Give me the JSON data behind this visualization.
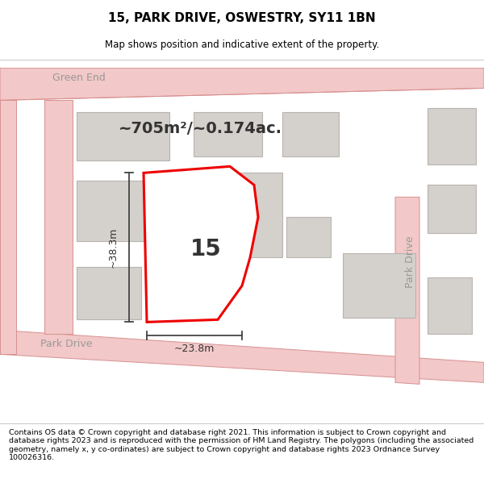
{
  "title": "15, PARK DRIVE, OSWESTRY, SY11 1BN",
  "subtitle": "Map shows position and indicative extent of the property.",
  "footer": "Contains OS data © Crown copyright and database right 2021. This information is subject to Crown copyright and database rights 2023 and is reproduced with the permission of HM Land Registry. The polygons (including the associated geometry, namely x, y co-ordinates) are subject to Crown copyright and database rights 2023 Ordnance Survey 100026316.",
  "area_label": "~705m²/~0.174ac.",
  "number_label": "15",
  "dim_h": "~38.3m",
  "dim_w": "~23.8m",
  "street_green_end": "Green End",
  "street_park_drive_h": "Park Drive",
  "street_park_drive_v": "Park Drive",
  "bg_color": "#f5eeea",
  "road_fill": "#f2c8c8",
  "road_edge": "#d89090",
  "building_fill": "#d4d0cc",
  "building_edge": "#b8b4b0",
  "plot_fill": "#ffffff",
  "plot_edge": "#ee0000",
  "dim_line_color": "#444444",
  "text_color": "#333333",
  "street_color": "#999999"
}
